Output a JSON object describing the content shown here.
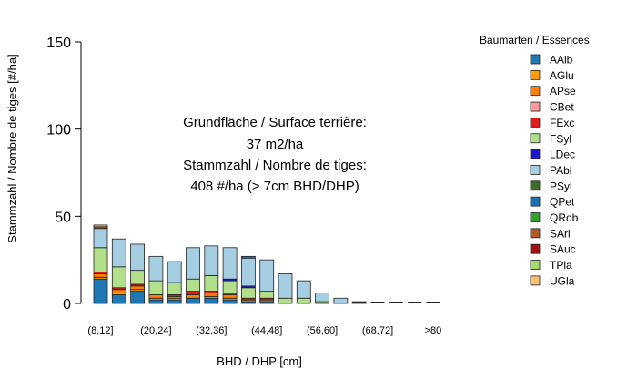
{
  "chart_data": {
    "type": "bar",
    "stacked": true,
    "xlabel": "BHD / DHP [cm]",
    "ylabel": "Stammzahl / Nombre de tiges [#/ha]",
    "ylim": [
      0,
      150
    ],
    "yticks": [
      0,
      50,
      100,
      150
    ],
    "categories": [
      "(8,12]",
      "(12,16]",
      "(16,20]",
      "(20,24]",
      "(24,28]",
      "(28,32]",
      "(32,36]",
      "(36,40]",
      "(40,44]",
      "(44,48]",
      "(48,52]",
      "(52,56]",
      "(56,60]",
      "(60,64]",
      "(64,68]",
      "(68,72]",
      "(72,76]",
      "(76,80]",
      ">80"
    ],
    "x_tick_labels": [
      "(8,12]",
      "(20,24]",
      "(32,36]",
      "(44,48]",
      "(56,60]",
      "(68,72]",
      ">80"
    ],
    "annotation": [
      "Grundfläche / Surface terrière:",
      "37 m2/ha",
      "Stammzahl / Nombre de tiges:",
      "408 #/ha (> 7cm BHD/DHP)"
    ],
    "legend_title": "Baumarten / Essences",
    "legend_position": "right",
    "series": [
      {
        "name": "AAlb",
        "color": "#1f78b4",
        "values": [
          14,
          5,
          7,
          2,
          2,
          3,
          3,
          2,
          1,
          1,
          0,
          0,
          0,
          0,
          0,
          0,
          0,
          0,
          0
        ]
      },
      {
        "name": "AGlu",
        "color": "#ff9f00",
        "values": [
          1,
          1,
          1,
          1,
          1,
          0,
          1,
          1,
          0,
          0,
          0,
          0,
          0,
          0,
          0,
          0,
          0,
          0,
          0
        ]
      },
      {
        "name": "APse",
        "color": "#ff7f00",
        "values": [
          2,
          2,
          2,
          2,
          1,
          2,
          2,
          2,
          1,
          1,
          0,
          0,
          0,
          0,
          0,
          0,
          0,
          0,
          0
        ]
      },
      {
        "name": "CBet",
        "color": "#fb9a99",
        "values": [
          0,
          0,
          0,
          0,
          0,
          0,
          0,
          0,
          0,
          0,
          0,
          0,
          0,
          0,
          0,
          0,
          0,
          0,
          0
        ]
      },
      {
        "name": "FExc",
        "color": "#e31a1c",
        "values": [
          1,
          1,
          1,
          0,
          1,
          2,
          1,
          1,
          1,
          1,
          0,
          0,
          0,
          0,
          0,
          0,
          0,
          0,
          0
        ]
      },
      {
        "name": "FSyl",
        "color": "#b2df8a",
        "values": [
          14,
          12,
          8,
          8,
          7,
          7,
          9,
          7,
          6,
          4,
          3,
          3,
          1,
          0,
          0,
          0,
          0,
          0,
          0
        ]
      },
      {
        "name": "LDec",
        "color": "#1a1ac8",
        "values": [
          0,
          0,
          0,
          0,
          0,
          0,
          0,
          1,
          1,
          0,
          0,
          0,
          0,
          0,
          0,
          0,
          0,
          0,
          0
        ]
      },
      {
        "name": "PAbi",
        "color": "#a6cee3",
        "values": [
          11,
          16,
          15,
          14,
          12,
          18,
          17,
          18,
          16,
          18,
          14,
          10,
          5,
          3,
          1,
          0,
          0,
          0,
          0
        ]
      },
      {
        "name": "PSyl",
        "color": "#3e6b2b",
        "values": [
          0,
          0,
          0,
          0,
          0,
          0,
          0,
          0,
          0,
          0,
          0,
          0,
          0,
          0,
          0,
          0,
          0,
          0,
          0
        ]
      },
      {
        "name": "QPet",
        "color": "#1f6fb4",
        "values": [
          0,
          0,
          0,
          0,
          0,
          0,
          0,
          0,
          1,
          0,
          0,
          0,
          0,
          0,
          0,
          0,
          0,
          0,
          0
        ]
      },
      {
        "name": "QRob",
        "color": "#33a02c",
        "values": [
          0,
          0,
          0,
          0,
          0,
          0,
          0,
          0,
          0,
          0,
          0,
          0,
          0,
          0,
          0,
          0,
          0,
          0,
          0
        ]
      },
      {
        "name": "SAri",
        "color": "#b15928",
        "values": [
          1,
          0,
          0,
          0,
          0,
          0,
          0,
          0,
          0,
          0,
          0,
          0,
          0,
          0,
          0,
          0,
          0,
          0,
          0
        ]
      },
      {
        "name": "SAuc",
        "color": "#a50f15",
        "values": [
          0,
          0,
          0,
          0,
          0,
          0,
          0,
          0,
          0,
          0,
          0,
          0,
          0,
          0,
          0,
          0,
          0,
          0,
          0
        ]
      },
      {
        "name": "TPla",
        "color": "#a6d96a",
        "values": [
          0,
          0,
          0,
          0,
          0,
          0,
          0,
          0,
          0,
          0,
          0,
          0,
          0,
          0,
          0,
          0,
          0,
          0,
          0
        ]
      },
      {
        "name": "UGla",
        "color": "#fdbf6f",
        "values": [
          1,
          0,
          0,
          0,
          0,
          0,
          0,
          0,
          0,
          0,
          0,
          0,
          0,
          0,
          0,
          0,
          0,
          0,
          0
        ]
      }
    ]
  }
}
